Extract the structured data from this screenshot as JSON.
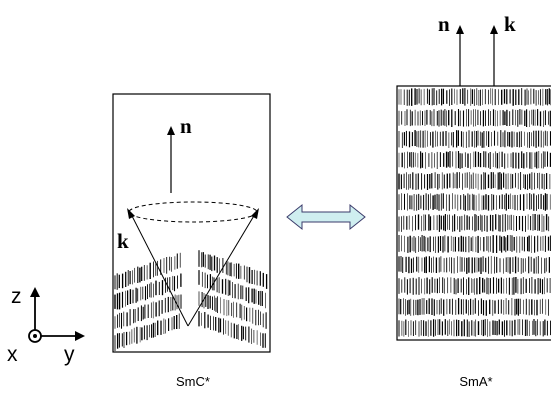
{
  "smc": {
    "caption": "SmC*",
    "n_label": "n",
    "k_label": "k"
  },
  "sma": {
    "caption": "SmA*",
    "n_label": "n",
    "k_label": "k"
  },
  "axes": {
    "z_label": "z",
    "x_label": "x",
    "y_label": "y"
  },
  "colors": {
    "stroke": "#000000",
    "double_arrow_fill": "#cfeef0",
    "double_arrow_stroke": "#3a3a6a"
  }
}
